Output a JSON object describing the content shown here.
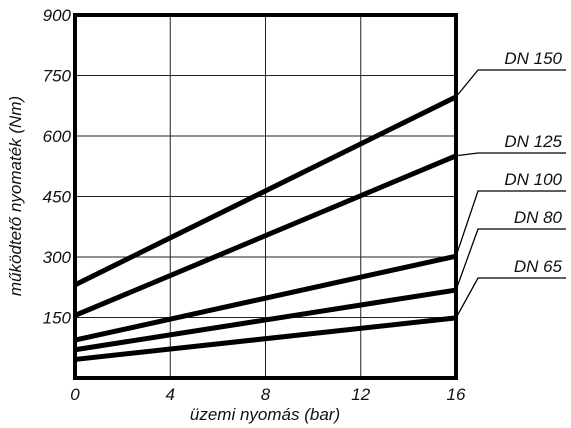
{
  "chart_data": {
    "type": "line",
    "xlabel": "üzemi nyomás (bar)",
    "ylabel": "működtető nyomaték (Nm)",
    "xlim": [
      0,
      16
    ],
    "ylim": [
      0,
      900
    ],
    "x_ticks": [
      "0",
      "4",
      "8",
      "12",
      "16"
    ],
    "y_ticks": [
      "150",
      "300",
      "450",
      "600",
      "750",
      "900"
    ],
    "grid": true,
    "x": [
      0,
      16
    ],
    "series": [
      {
        "name": "DN 150",
        "values": [
          231,
          697
        ]
      },
      {
        "name": "DN 125",
        "values": [
          155,
          551
        ]
      },
      {
        "name": "DN 100",
        "values": [
          94,
          302
        ]
      },
      {
        "name": "DN 80",
        "values": [
          70,
          218
        ]
      },
      {
        "name": "DN 65",
        "values": [
          46,
          149
        ]
      }
    ],
    "line_color": "#000000"
  }
}
